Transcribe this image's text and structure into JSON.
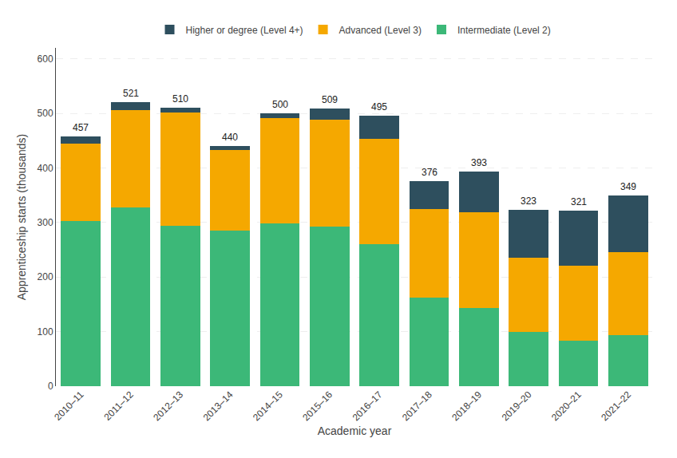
{
  "chart_data": {
    "type": "bar",
    "stacked": true,
    "categories": [
      "2010–11",
      "2011–12",
      "2012–13",
      "2013–14",
      "2014–15",
      "2015–16",
      "2016–17",
      "2017–18",
      "2018–19",
      "2019–20",
      "2020–21",
      "2021–22"
    ],
    "series": [
      {
        "name": "Intermediate (Level 2)",
        "color": "#3cb878",
        "values": [
          302,
          328,
          294,
          285,
          299,
          293,
          260,
          162,
          143,
          100,
          83,
          93
        ]
      },
      {
        "name": "Advanced (Level 3)",
        "color": "#f5a800",
        "values": [
          143,
          178,
          207,
          148,
          192,
          196,
          194,
          163,
          176,
          135,
          138,
          153
        ]
      },
      {
        "name": "Higher or degree (Level 4+)",
        "color": "#2e4f5e",
        "values": [
          12,
          15,
          9,
          7,
          9,
          20,
          41,
          51,
          74,
          88,
          100,
          103
        ]
      }
    ],
    "totals": [
      457,
      521,
      510,
      440,
      500,
      509,
      495,
      376,
      393,
      323,
      321,
      349
    ],
    "xlabel": "Academic year",
    "ylabel": "Apprenticeship starts (thousands)",
    "ylim": [
      0,
      620
    ],
    "yticks": [
      0,
      100,
      200,
      300,
      400,
      500,
      600
    ],
    "grid": true,
    "legend": "top"
  }
}
